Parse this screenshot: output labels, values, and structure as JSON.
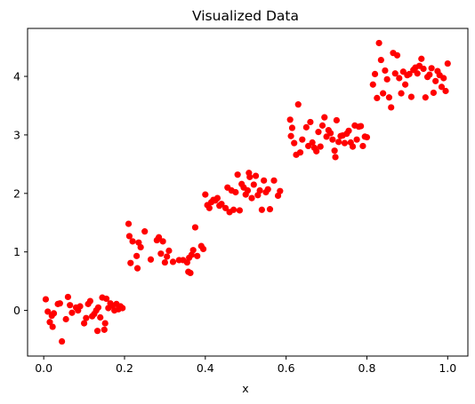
{
  "chart_data": {
    "type": "scatter",
    "title": "Visualized Data",
    "xlabel": "x",
    "ylabel": "",
    "xlim": [
      -0.04,
      1.05
    ],
    "ylim": [
      -0.78,
      4.82
    ],
    "x_ticks": [
      "0.0",
      "0.2",
      "0.4",
      "0.6",
      "0.8",
      "1.0"
    ],
    "x_tick_values": [
      0.0,
      0.2,
      0.4,
      0.6,
      0.8,
      1.0
    ],
    "y_ticks": [
      "0",
      "1",
      "2",
      "3",
      "4"
    ],
    "y_tick_values": [
      0,
      1,
      2,
      3,
      4
    ],
    "grid": false,
    "legend": "none",
    "marker_color": "#ff0000",
    "series": [
      {
        "points": [
          [
            0.005,
            0.19
          ],
          [
            0.01,
            -0.02
          ],
          [
            0.015,
            -0.2
          ],
          [
            0.02,
            -0.09
          ],
          [
            0.022,
            -0.28
          ],
          [
            0.025,
            -0.05
          ],
          [
            0.035,
            0.11
          ],
          [
            0.04,
            0.12
          ],
          [
            0.045,
            -0.53
          ],
          [
            0.055,
            -0.15
          ],
          [
            0.06,
            0.23
          ],
          [
            0.065,
            0.09
          ],
          [
            0.07,
            -0.04
          ],
          [
            0.08,
            0.05
          ],
          [
            0.085,
            0.0
          ],
          [
            0.09,
            0.07
          ],
          [
            0.1,
            -0.22
          ],
          [
            0.105,
            -0.13
          ],
          [
            0.11,
            0.11
          ],
          [
            0.115,
            0.16
          ],
          [
            0.12,
            -0.1
          ],
          [
            0.125,
            -0.06
          ],
          [
            0.13,
            0.0
          ],
          [
            0.133,
            -0.35
          ],
          [
            0.135,
            0.05
          ],
          [
            0.14,
            -0.12
          ],
          [
            0.145,
            0.22
          ],
          [
            0.15,
            -0.33
          ],
          [
            0.152,
            -0.22
          ],
          [
            0.155,
            0.2
          ],
          [
            0.16,
            0.04
          ],
          [
            0.165,
            0.12
          ],
          [
            0.17,
            0.08
          ],
          [
            0.175,
            0.0
          ],
          [
            0.18,
            0.11
          ],
          [
            0.185,
            0.02
          ],
          [
            0.19,
            0.07
          ],
          [
            0.195,
            0.04
          ],
          [
            0.21,
            1.48
          ],
          [
            0.212,
            1.27
          ],
          [
            0.215,
            0.81
          ],
          [
            0.22,
            1.18
          ],
          [
            0.23,
            0.93
          ],
          [
            0.232,
            0.72
          ],
          [
            0.235,
            1.16
          ],
          [
            0.24,
            1.08
          ],
          [
            0.25,
            1.35
          ],
          [
            0.265,
            0.87
          ],
          [
            0.28,
            1.2
          ],
          [
            0.285,
            1.25
          ],
          [
            0.29,
            0.97
          ],
          [
            0.295,
            1.18
          ],
          [
            0.3,
            0.82
          ],
          [
            0.305,
            0.92
          ],
          [
            0.31,
            1.02
          ],
          [
            0.32,
            0.83
          ],
          [
            0.335,
            0.86
          ],
          [
            0.345,
            0.86
          ],
          [
            0.355,
            0.82
          ],
          [
            0.358,
            0.66
          ],
          [
            0.36,
            0.9
          ],
          [
            0.363,
            0.64
          ],
          [
            0.366,
            0.95
          ],
          [
            0.37,
            1.03
          ],
          [
            0.375,
            1.42
          ],
          [
            0.38,
            0.93
          ],
          [
            0.39,
            1.1
          ],
          [
            0.395,
            1.05
          ],
          [
            0.4,
            1.98
          ],
          [
            0.405,
            1.8
          ],
          [
            0.41,
            1.75
          ],
          [
            0.415,
            1.85
          ],
          [
            0.42,
            1.89
          ],
          [
            0.425,
            1.88
          ],
          [
            0.43,
            1.92
          ],
          [
            0.435,
            1.79
          ],
          [
            0.44,
            1.82
          ],
          [
            0.45,
            1.75
          ],
          [
            0.455,
            2.1
          ],
          [
            0.46,
            1.68
          ],
          [
            0.465,
            2.05
          ],
          [
            0.47,
            1.72
          ],
          [
            0.475,
            2.02
          ],
          [
            0.48,
            2.32
          ],
          [
            0.485,
            1.71
          ],
          [
            0.49,
            2.16
          ],
          [
            0.495,
            2.1
          ],
          [
            0.5,
            1.98
          ],
          [
            0.505,
            2.05
          ],
          [
            0.508,
            2.35
          ],
          [
            0.51,
            2.28
          ],
          [
            0.515,
            1.92
          ],
          [
            0.52,
            2.15
          ],
          [
            0.525,
            2.3
          ],
          [
            0.53,
            1.97
          ],
          [
            0.535,
            2.05
          ],
          [
            0.54,
            1.72
          ],
          [
            0.545,
            2.22
          ],
          [
            0.55,
            2.02
          ],
          [
            0.555,
            2.07
          ],
          [
            0.56,
            1.73
          ],
          [
            0.57,
            2.22
          ],
          [
            0.58,
            1.96
          ],
          [
            0.585,
            2.04
          ],
          [
            0.61,
            3.26
          ],
          [
            0.612,
            2.98
          ],
          [
            0.615,
            3.12
          ],
          [
            0.62,
            2.86
          ],
          [
            0.625,
            2.66
          ],
          [
            0.63,
            3.52
          ],
          [
            0.635,
            2.7
          ],
          [
            0.64,
            2.92
          ],
          [
            0.65,
            3.13
          ],
          [
            0.655,
            2.81
          ],
          [
            0.66,
            3.22
          ],
          [
            0.665,
            2.87
          ],
          [
            0.67,
            2.78
          ],
          [
            0.675,
            2.72
          ],
          [
            0.68,
            3.05
          ],
          [
            0.685,
            2.8
          ],
          [
            0.69,
            3.16
          ],
          [
            0.695,
            3.3
          ],
          [
            0.7,
            2.97
          ],
          [
            0.705,
            3.08
          ],
          [
            0.71,
            3.03
          ],
          [
            0.715,
            2.92
          ],
          [
            0.72,
            2.73
          ],
          [
            0.722,
            2.62
          ],
          [
            0.725,
            3.25
          ],
          [
            0.73,
            2.88
          ],
          [
            0.735,
            2.98
          ],
          [
            0.74,
            2.99
          ],
          [
            0.745,
            2.86
          ],
          [
            0.75,
            3.02
          ],
          [
            0.755,
            3.07
          ],
          [
            0.76,
            2.87
          ],
          [
            0.765,
            2.8
          ],
          [
            0.77,
            3.16
          ],
          [
            0.775,
            2.92
          ],
          [
            0.78,
            3.14
          ],
          [
            0.785,
            3.15
          ],
          [
            0.79,
            2.81
          ],
          [
            0.795,
            2.97
          ],
          [
            0.8,
            2.96
          ],
          [
            0.815,
            3.86
          ],
          [
            0.82,
            4.04
          ],
          [
            0.825,
            3.63
          ],
          [
            0.83,
            4.57
          ],
          [
            0.835,
            4.28
          ],
          [
            0.84,
            3.71
          ],
          [
            0.845,
            4.1
          ],
          [
            0.85,
            3.95
          ],
          [
            0.855,
            3.64
          ],
          [
            0.86,
            3.47
          ],
          [
            0.865,
            4.4
          ],
          [
            0.87,
            4.05
          ],
          [
            0.875,
            4.36
          ],
          [
            0.88,
            3.97
          ],
          [
            0.885,
            3.71
          ],
          [
            0.89,
            4.08
          ],
          [
            0.895,
            3.86
          ],
          [
            0.9,
            4.02
          ],
          [
            0.905,
            4.04
          ],
          [
            0.91,
            3.65
          ],
          [
            0.915,
            4.11
          ],
          [
            0.92,
            4.15
          ],
          [
            0.925,
            4.05
          ],
          [
            0.93,
            4.18
          ],
          [
            0.935,
            4.3
          ],
          [
            0.94,
            4.13
          ],
          [
            0.945,
            3.64
          ],
          [
            0.95,
            3.99
          ],
          [
            0.955,
            4.03
          ],
          [
            0.96,
            4.14
          ],
          [
            0.965,
            3.72
          ],
          [
            0.97,
            3.92
          ],
          [
            0.975,
            4.09
          ],
          [
            0.98,
            4.02
          ],
          [
            0.985,
            3.82
          ],
          [
            0.99,
            3.97
          ],
          [
            0.995,
            3.75
          ],
          [
            1.0,
            4.22
          ]
        ]
      }
    ]
  }
}
